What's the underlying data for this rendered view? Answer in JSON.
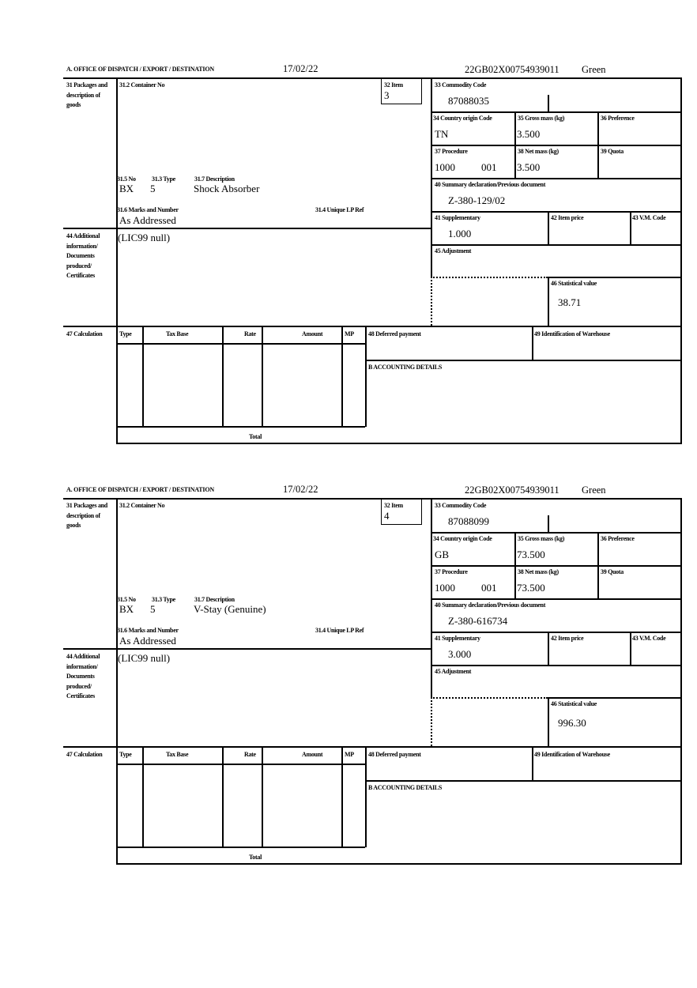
{
  "labels": {
    "office": "A. OFFICE OF DISPATCH / EXPORT / DESTINATION",
    "b31": "31 Packages and description of goods",
    "b31_2": "31.2 Container No",
    "b32": "32 Item",
    "b31_5": "31.5 No",
    "b31_3": "31.3 Type",
    "b31_7": "31.7 Description",
    "b31_6": "31.6 Marks and Number",
    "b31_4": "31.4 Unique LP Ref",
    "b33": "33 Commodity Code",
    "b34": "34 Country origin Code",
    "b35": "35 Gross mass (kg)",
    "b36": "36 Preference",
    "b37": "37 Procedure",
    "b38": "38 Net mass (kg)",
    "b39": "39 Quota",
    "b40": "40 Summary declaration/Previous document",
    "b41": "41 Supplementary",
    "b42": "42 Item price",
    "b43": "43 V.M. Code",
    "b44": "44 Additional information/ Documents produced/ Certificates",
    "b45": "45 Adjustment",
    "b46": "46 Statistical value",
    "b47": "47 Calculation",
    "col_type": "Type",
    "col_taxbase": "Tax Base",
    "col_rate": "Rate",
    "col_amount": "Amount",
    "col_mp": "MP",
    "total": "Total",
    "b48": "48 Deferred payment",
    "b49": "49 Identification of Warehouse",
    "bacc": "B ACCOUNTING DETAILS"
  },
  "forms": [
    {
      "date": "17/02/22",
      "reference": "22GB02X00754939011",
      "route": "Green",
      "item": "3",
      "no": "BX",
      "type": "5",
      "description": "Shock Absorber",
      "marks": "As Addressed",
      "commodity_code": "87088035",
      "country_origin": "TN",
      "gross_mass": "3.500",
      "procedure_1": "1000",
      "procedure_2": "001",
      "net_mass": "3.500",
      "previous_document": "Z-380-129/02",
      "supplementary": "1.000",
      "additional_info": "(LIC99 null)",
      "statistical_value": "38.71"
    },
    {
      "date": "17/02/22",
      "reference": "22GB02X00754939011",
      "route": "Green",
      "item": "4",
      "no": "BX",
      "type": "5",
      "description": "V-Stay (Genuine)",
      "marks": "As Addressed",
      "commodity_code": "87088099",
      "country_origin": "GB",
      "gross_mass": "73.500",
      "procedure_1": "1000",
      "procedure_2": "001",
      "net_mass": "73.500",
      "previous_document": "Z-380-616734",
      "supplementary": "3.000",
      "additional_info": "(LIC99 null)",
      "statistical_value": "996.30"
    }
  ]
}
